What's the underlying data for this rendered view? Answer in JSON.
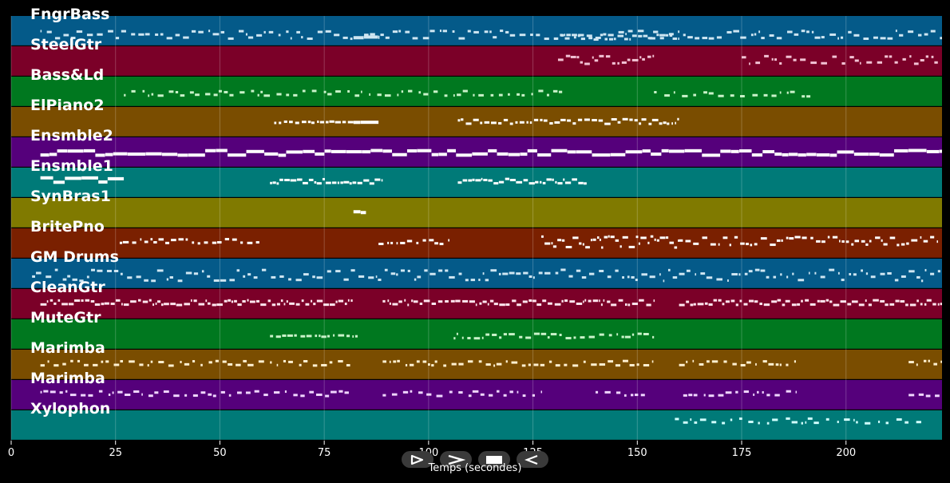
{
  "chart_data": {
    "type": "piano-roll",
    "x_label": "Temps (secondes)",
    "x_range": [
      0,
      223
    ],
    "x_ticks": [
      0,
      25,
      50,
      75,
      100,
      125,
      150,
      175,
      200
    ],
    "grid": true,
    "tracks": [
      {
        "name": "FngrBass",
        "color": "#045a89",
        "note_color": "#cfe6f2",
        "segments": [
          {
            "start": 7,
            "end": 223,
            "density": 0.55,
            "lanes": 3,
            "row": 0.62
          },
          {
            "start": 82,
            "end": 88,
            "density": 1,
            "lanes": 1,
            "row": 0.7
          },
          {
            "start": 130,
            "end": 160,
            "density": 0.85,
            "lanes": 2,
            "row": 0.7
          }
        ]
      },
      {
        "name": "SteelGtr",
        "color": "#7b0028",
        "note_color": "#f2c2d4",
        "segments": [
          {
            "start": 131,
            "end": 154,
            "density": 0.8,
            "lanes": 3,
            "row": 0.45
          },
          {
            "start": 175,
            "end": 222,
            "density": 0.55,
            "lanes": 3,
            "row": 0.45
          }
        ]
      },
      {
        "name": "Bass&Ld",
        "color": "#00781f",
        "note_color": "#c9f2c9",
        "segments": [
          {
            "start": 27,
            "end": 132,
            "density": 0.4,
            "lanes": 2,
            "row": 0.55
          },
          {
            "start": 154,
            "end": 193,
            "density": 0.35,
            "lanes": 2,
            "row": 0.58
          }
        ]
      },
      {
        "name": "ElPiano2",
        "color": "#7a4d00",
        "note_color": "#ffffff",
        "segments": [
          {
            "start": 63,
            "end": 82,
            "density": 0.75,
            "lanes": 1,
            "row": 0.5
          },
          {
            "start": 82,
            "end": 88,
            "density": 1,
            "lanes": 2,
            "row": 0.55
          },
          {
            "start": 107,
            "end": 160,
            "density": 0.8,
            "lanes": 2,
            "row": 0.48
          }
        ]
      },
      {
        "name": "Ensmble2",
        "color": "#55007b",
        "note_color": "#ffffff",
        "segments": [
          {
            "start": 7,
            "end": 223,
            "density": 1,
            "lanes": 2,
            "row": 0.5
          }
        ]
      },
      {
        "name": "Ensmble1",
        "color": "#007a78",
        "note_color": "#ffffff",
        "segments": [
          {
            "start": 7,
            "end": 27,
            "density": 1,
            "lanes": 2,
            "row": 0.4
          },
          {
            "start": 62,
            "end": 89,
            "density": 0.9,
            "lanes": 2,
            "row": 0.45
          },
          {
            "start": 107,
            "end": 138,
            "density": 0.9,
            "lanes": 2,
            "row": 0.45
          }
        ]
      },
      {
        "name": "SynBras1",
        "color": "#807a00",
        "note_color": "#ffffff",
        "segments": [
          {
            "start": 82,
            "end": 85,
            "density": 1,
            "lanes": 1,
            "row": 0.45
          }
        ]
      },
      {
        "name": "BritePno",
        "color": "#7a2000",
        "note_color": "#ffffff",
        "segments": [
          {
            "start": 26,
            "end": 60,
            "density": 0.65,
            "lanes": 2,
            "row": 0.42
          },
          {
            "start": 88,
            "end": 105,
            "density": 0.6,
            "lanes": 2,
            "row": 0.45
          },
          {
            "start": 127,
            "end": 160,
            "density": 0.9,
            "lanes": 4,
            "row": 0.45
          },
          {
            "start": 160,
            "end": 222,
            "density": 0.7,
            "lanes": 3,
            "row": 0.42
          }
        ]
      },
      {
        "name": "GM Drums",
        "color": "#045a89",
        "note_color": "#cfe6f2",
        "segments": [
          {
            "start": 5,
            "end": 223,
            "density": 0.6,
            "lanes": 4,
            "row": 0.55
          }
        ]
      },
      {
        "name": "CleanGtr",
        "color": "#7b0028",
        "note_color": "#ffe6ee",
        "segments": [
          {
            "start": 7,
            "end": 82,
            "density": 0.85,
            "lanes": 2,
            "row": 0.45
          },
          {
            "start": 89,
            "end": 154,
            "density": 0.8,
            "lanes": 2,
            "row": 0.45
          },
          {
            "start": 160,
            "end": 223,
            "density": 0.85,
            "lanes": 2,
            "row": 0.45
          }
        ]
      },
      {
        "name": "MuteGtr",
        "color": "#00781f",
        "note_color": "#c9f2c9",
        "segments": [
          {
            "start": 62,
            "end": 83,
            "density": 0.7,
            "lanes": 1,
            "row": 0.55
          },
          {
            "start": 106,
            "end": 154,
            "density": 0.6,
            "lanes": 2,
            "row": 0.55
          }
        ]
      },
      {
        "name": "Marimba",
        "color": "#7a4d00",
        "note_color": "#fff0d0",
        "segments": [
          {
            "start": 7,
            "end": 82,
            "density": 0.5,
            "lanes": 2,
            "row": 0.45
          },
          {
            "start": 89,
            "end": 154,
            "density": 0.5,
            "lanes": 2,
            "row": 0.45
          },
          {
            "start": 160,
            "end": 188,
            "density": 0.5,
            "lanes": 2,
            "row": 0.45
          },
          {
            "start": 215,
            "end": 223,
            "density": 0.5,
            "lanes": 2,
            "row": 0.45
          }
        ]
      },
      {
        "name": "Marimba",
        "color": "#55007b",
        "note_color": "#f0d6ff",
        "segments": [
          {
            "start": 7,
            "end": 82,
            "density": 0.45,
            "lanes": 2,
            "row": 0.45
          },
          {
            "start": 89,
            "end": 127,
            "density": 0.45,
            "lanes": 2,
            "row": 0.45
          },
          {
            "start": 140,
            "end": 152,
            "density": 0.45,
            "lanes": 2,
            "row": 0.45
          },
          {
            "start": 161,
            "end": 188,
            "density": 0.45,
            "lanes": 2,
            "row": 0.45
          },
          {
            "start": 215,
            "end": 223,
            "density": 0.45,
            "lanes": 2,
            "row": 0.45
          }
        ]
      },
      {
        "name": "Xylophon",
        "color": "#007a78",
        "note_color": "#d0fffd",
        "segments": [
          {
            "start": 159,
            "end": 219,
            "density": 0.35,
            "lanes": 2,
            "row": 0.35
          }
        ]
      }
    ]
  },
  "controls": {
    "play_icon": "play-icon",
    "forward_icon": "forward-icon",
    "stop_icon": "stop-icon",
    "rewind_icon": "rewind-icon"
  }
}
